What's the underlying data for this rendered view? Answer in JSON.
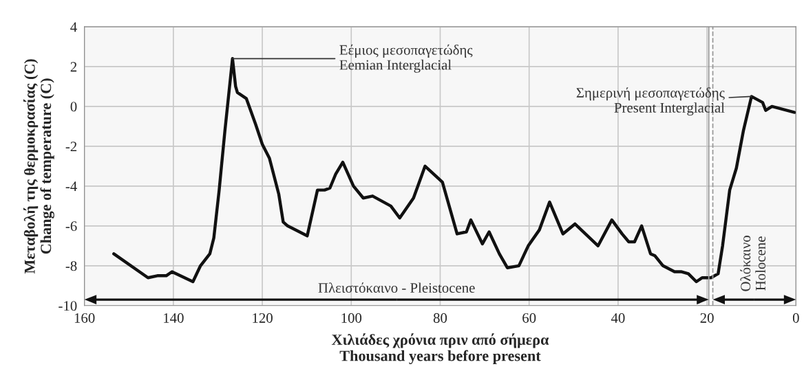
{
  "chart_data": {
    "type": "line",
    "xlabel": "Χιλιάδες χρόνια πριν από σήμερα\nThousand years before present",
    "ylabel": "Μεταβολή της θερμοκρασίας (C)\nChange of temperature (C)",
    "x": [
      153.4,
      145.7,
      143.6,
      141.6,
      140.3,
      135.6,
      133.9,
      131.8,
      130.9,
      129.7,
      128.4,
      126.7,
      126.0,
      125.6,
      123.6,
      121.5,
      120.0,
      118.4,
      116.3,
      115.3,
      114.3,
      109.9,
      107.6,
      106.0,
      104.8,
      103.5,
      101.9,
      99.5,
      97.3,
      95.2,
      91.1,
      89.1,
      86.0,
      83.4,
      79.5,
      76.2,
      74.1,
      73.1,
      70.5,
      69.0,
      66.7,
      64.9,
      62.3,
      60.2,
      57.7,
      55.4,
      52.4,
      49.7,
      44.5,
      41.4,
      39.1,
      37.6,
      36.3,
      34.7,
      32.7,
      31.7,
      29.9,
      27.3,
      25.7,
      24.2,
      22.4,
      21.1,
      19.1,
      17.5,
      16.5,
      14.9,
      13.4,
      11.8,
      10.0,
      7.5,
      6.8,
      5.4,
      0.3
    ],
    "series": [
      {
        "color": "#111111",
        "values": [
          -7.4,
          -8.6,
          -8.5,
          -8.5,
          -8.3,
          -8.8,
          -8.0,
          -7.4,
          -6.6,
          -4.2,
          -1.2,
          2.4,
          1.0,
          0.7,
          0.4,
          -0.9,
          -1.9,
          -2.6,
          -4.4,
          -5.8,
          -6.0,
          -6.5,
          -4.2,
          -4.2,
          -4.1,
          -3.4,
          -2.8,
          -4.0,
          -4.6,
          -4.5,
          -5.0,
          -5.6,
          -4.6,
          -3.0,
          -3.8,
          -6.4,
          -6.3,
          -5.7,
          -6.9,
          -6.3,
          -7.4,
          -8.1,
          -8.0,
          -7.0,
          -6.2,
          -4.8,
          -6.4,
          -5.9,
          -7.0,
          -5.7,
          -6.4,
          -6.8,
          -6.8,
          -6.0,
          -7.4,
          -7.5,
          -8.0,
          -8.3,
          -8.3,
          -8.4,
          -8.8,
          -8.6,
          -8.6,
          -8.4,
          -7.0,
          -4.2,
          -3.1,
          -1.2,
          0.5,
          0.2,
          -0.2,
          0.0,
          -0.3
        ]
      }
    ],
    "xlim": [
      160,
      0
    ],
    "ylim": [
      -10,
      4
    ],
    "xticks": [
      160,
      140,
      120,
      100,
      80,
      60,
      40,
      20,
      0
    ],
    "yticks": [
      -10,
      -8,
      -6,
      -4,
      -2,
      0,
      2,
      4
    ],
    "grid": true,
    "line_style": "solid",
    "marker": "none",
    "annotations": [
      {
        "text": "Εέμιος μεσοπαγετώδης\nEemian Interglacial",
        "x": 126.7,
        "y": 2.4
      },
      {
        "text": "Σημερινή μεσοπαγετώδης\nPresent Interglacial",
        "x": 10.0,
        "y": 0.5
      }
    ],
    "ref_lines": [
      {
        "axis": "x",
        "value": 19.6,
        "color": "#999999",
        "line_style": "solid"
      },
      {
        "axis": "x",
        "value": 18.7,
        "color": "#999999",
        "line_style": "dashed"
      }
    ],
    "bands": [
      {
        "axis": "x",
        "from": 160,
        "to": 19.6,
        "label": "Πλειστόκαινο - Pleistocene",
        "color": "#f7f7f7"
      },
      {
        "axis": "x",
        "from": 18.7,
        "to": 0,
        "label": "Ολόκαινο\nHolocene",
        "color": "#f7f7f7"
      }
    ]
  }
}
